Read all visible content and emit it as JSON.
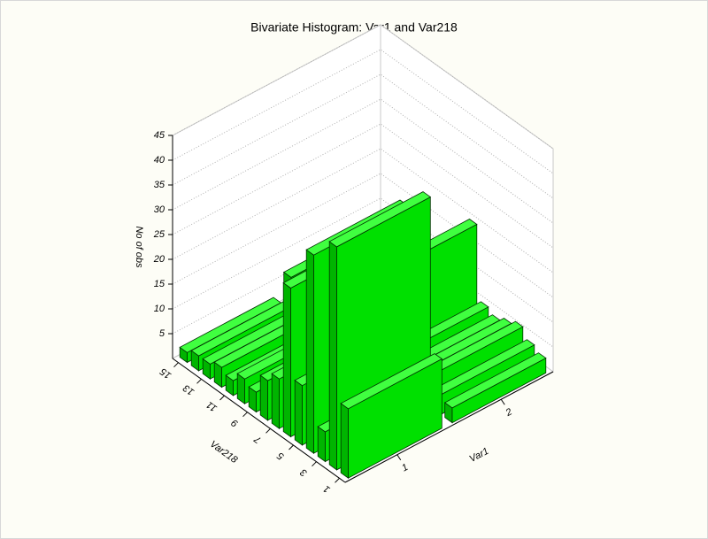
{
  "chart_data": {
    "type": "bar3d",
    "title": "Bivariate Histogram: Var1 and Var218",
    "xlabel": "Var1",
    "ylabel": "Var218",
    "zlabel": "No of obs",
    "x_categories": [
      "1",
      "2"
    ],
    "y_categories": [
      "1",
      null,
      "3",
      null,
      "5",
      null,
      "7",
      null,
      "9",
      null,
      "11",
      null,
      "13",
      null,
      "15"
    ],
    "values": [
      [
        14,
        45,
        6,
        40,
        12,
        30,
        10,
        8,
        4,
        5,
        3,
        4,
        3,
        3,
        2
      ],
      [
        3,
        4,
        6,
        5,
        4,
        5,
        20,
        4,
        3,
        2,
        2,
        3,
        4,
        5,
        6
      ]
    ],
    "zlim": [
      0,
      45
    ],
    "zticks": [
      5,
      10,
      15,
      20,
      25,
      30,
      35,
      40,
      45
    ],
    "grid": true,
    "color": "#00e000"
  }
}
